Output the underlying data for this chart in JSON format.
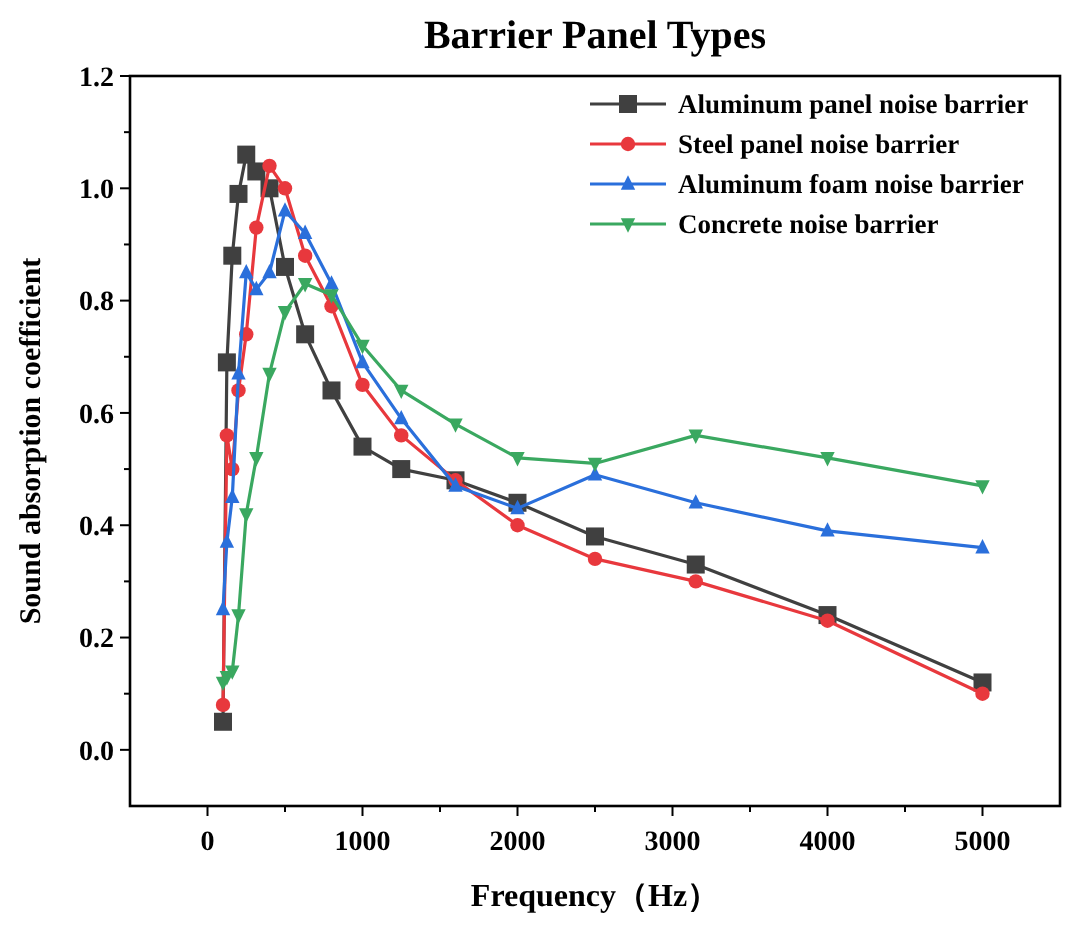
{
  "chart_data": {
    "type": "line",
    "title": "Barrier Panel Types",
    "xlabel": "Frequency（Hz）",
    "ylabel": "Sound absorption coefficient",
    "x": [
      100,
      125,
      160,
      200,
      250,
      315,
      400,
      500,
      630,
      800,
      1000,
      1250,
      1600,
      2000,
      2500,
      3150,
      4000,
      5000
    ],
    "series": [
      {
        "name": "Aluminum panel noise barrier",
        "color": "#404040",
        "marker": "square",
        "values": [
          0.05,
          0.69,
          0.88,
          0.99,
          1.06,
          1.03,
          1.0,
          0.86,
          0.74,
          0.64,
          0.54,
          0.5,
          0.48,
          0.44,
          0.38,
          0.33,
          0.24,
          0.12
        ]
      },
      {
        "name": "Steel panel noise barrier",
        "color": "#e8383d",
        "marker": "circle",
        "values": [
          0.08,
          0.56,
          0.5,
          0.64,
          0.74,
          0.93,
          1.04,
          1.0,
          0.88,
          0.79,
          0.65,
          0.56,
          0.48,
          0.4,
          0.34,
          0.3,
          0.23,
          0.1
        ]
      },
      {
        "name": "Aluminum foam noise barrier",
        "color": "#2a6fdb",
        "marker": "triangle",
        "values": [
          0.25,
          0.37,
          0.45,
          0.67,
          0.85,
          0.82,
          0.85,
          0.96,
          0.92,
          0.83,
          0.69,
          0.59,
          0.47,
          0.43,
          0.49,
          0.44,
          0.39,
          0.36
        ]
      },
      {
        "name": "Concrete noise barrier",
        "color": "#3aa860",
        "marker": "triangle-down",
        "values": [
          0.12,
          0.13,
          0.14,
          0.24,
          0.42,
          0.52,
          0.67,
          0.78,
          0.83,
          0.81,
          0.72,
          0.64,
          0.58,
          0.52,
          0.51,
          0.56,
          0.52,
          0.47
        ]
      }
    ],
    "xlim": [
      -500,
      5500
    ],
    "xticks": [
      0,
      {
        "value": 500,
        "label": null
      },
      1000,
      {
        "value": 1500,
        "label": null
      },
      2000,
      {
        "value": 2500,
        "label": null
      },
      3000,
      {
        "value": 3500,
        "label": null
      },
      4000,
      {
        "value": 4500,
        "label": null
      },
      5000
    ],
    "ylim": [
      -0.1,
      1.2
    ],
    "yticks": [
      {
        "value": 0,
        "label": "0.0"
      },
      {
        "value": 0.1,
        "label": null
      },
      {
        "value": 0.2,
        "label": "0.2"
      },
      {
        "value": 0.3,
        "label": null
      },
      {
        "value": 0.4,
        "label": "0.4"
      },
      {
        "value": 0.5,
        "label": null
      },
      {
        "value": 0.6,
        "label": "0.6"
      },
      {
        "value": 0.7,
        "label": null
      },
      {
        "value": 0.8,
        "label": "0.8"
      },
      {
        "value": 0.9,
        "label": null
      },
      {
        "value": 1.0,
        "label": "1.0"
      },
      {
        "value": 1.1,
        "label": null
      },
      {
        "value": 1.2,
        "label": "1.2"
      }
    ],
    "grid": false,
    "legend": "top right",
    "line_style": "solid"
  }
}
